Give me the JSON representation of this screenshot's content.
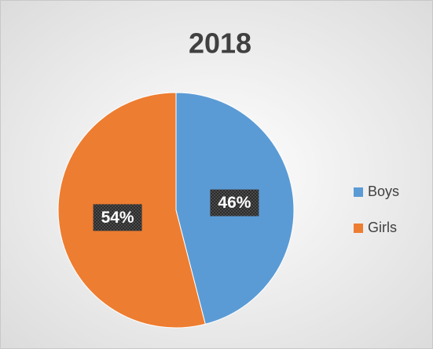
{
  "chart_data": {
    "type": "pie",
    "title": "2018",
    "categories": [
      "Boys",
      "Girls"
    ],
    "values": [
      46,
      54
    ],
    "value_labels": [
      "46%",
      "54%"
    ],
    "colors": [
      "#5b9bd5",
      "#ed7d31"
    ],
    "legend": "right"
  }
}
